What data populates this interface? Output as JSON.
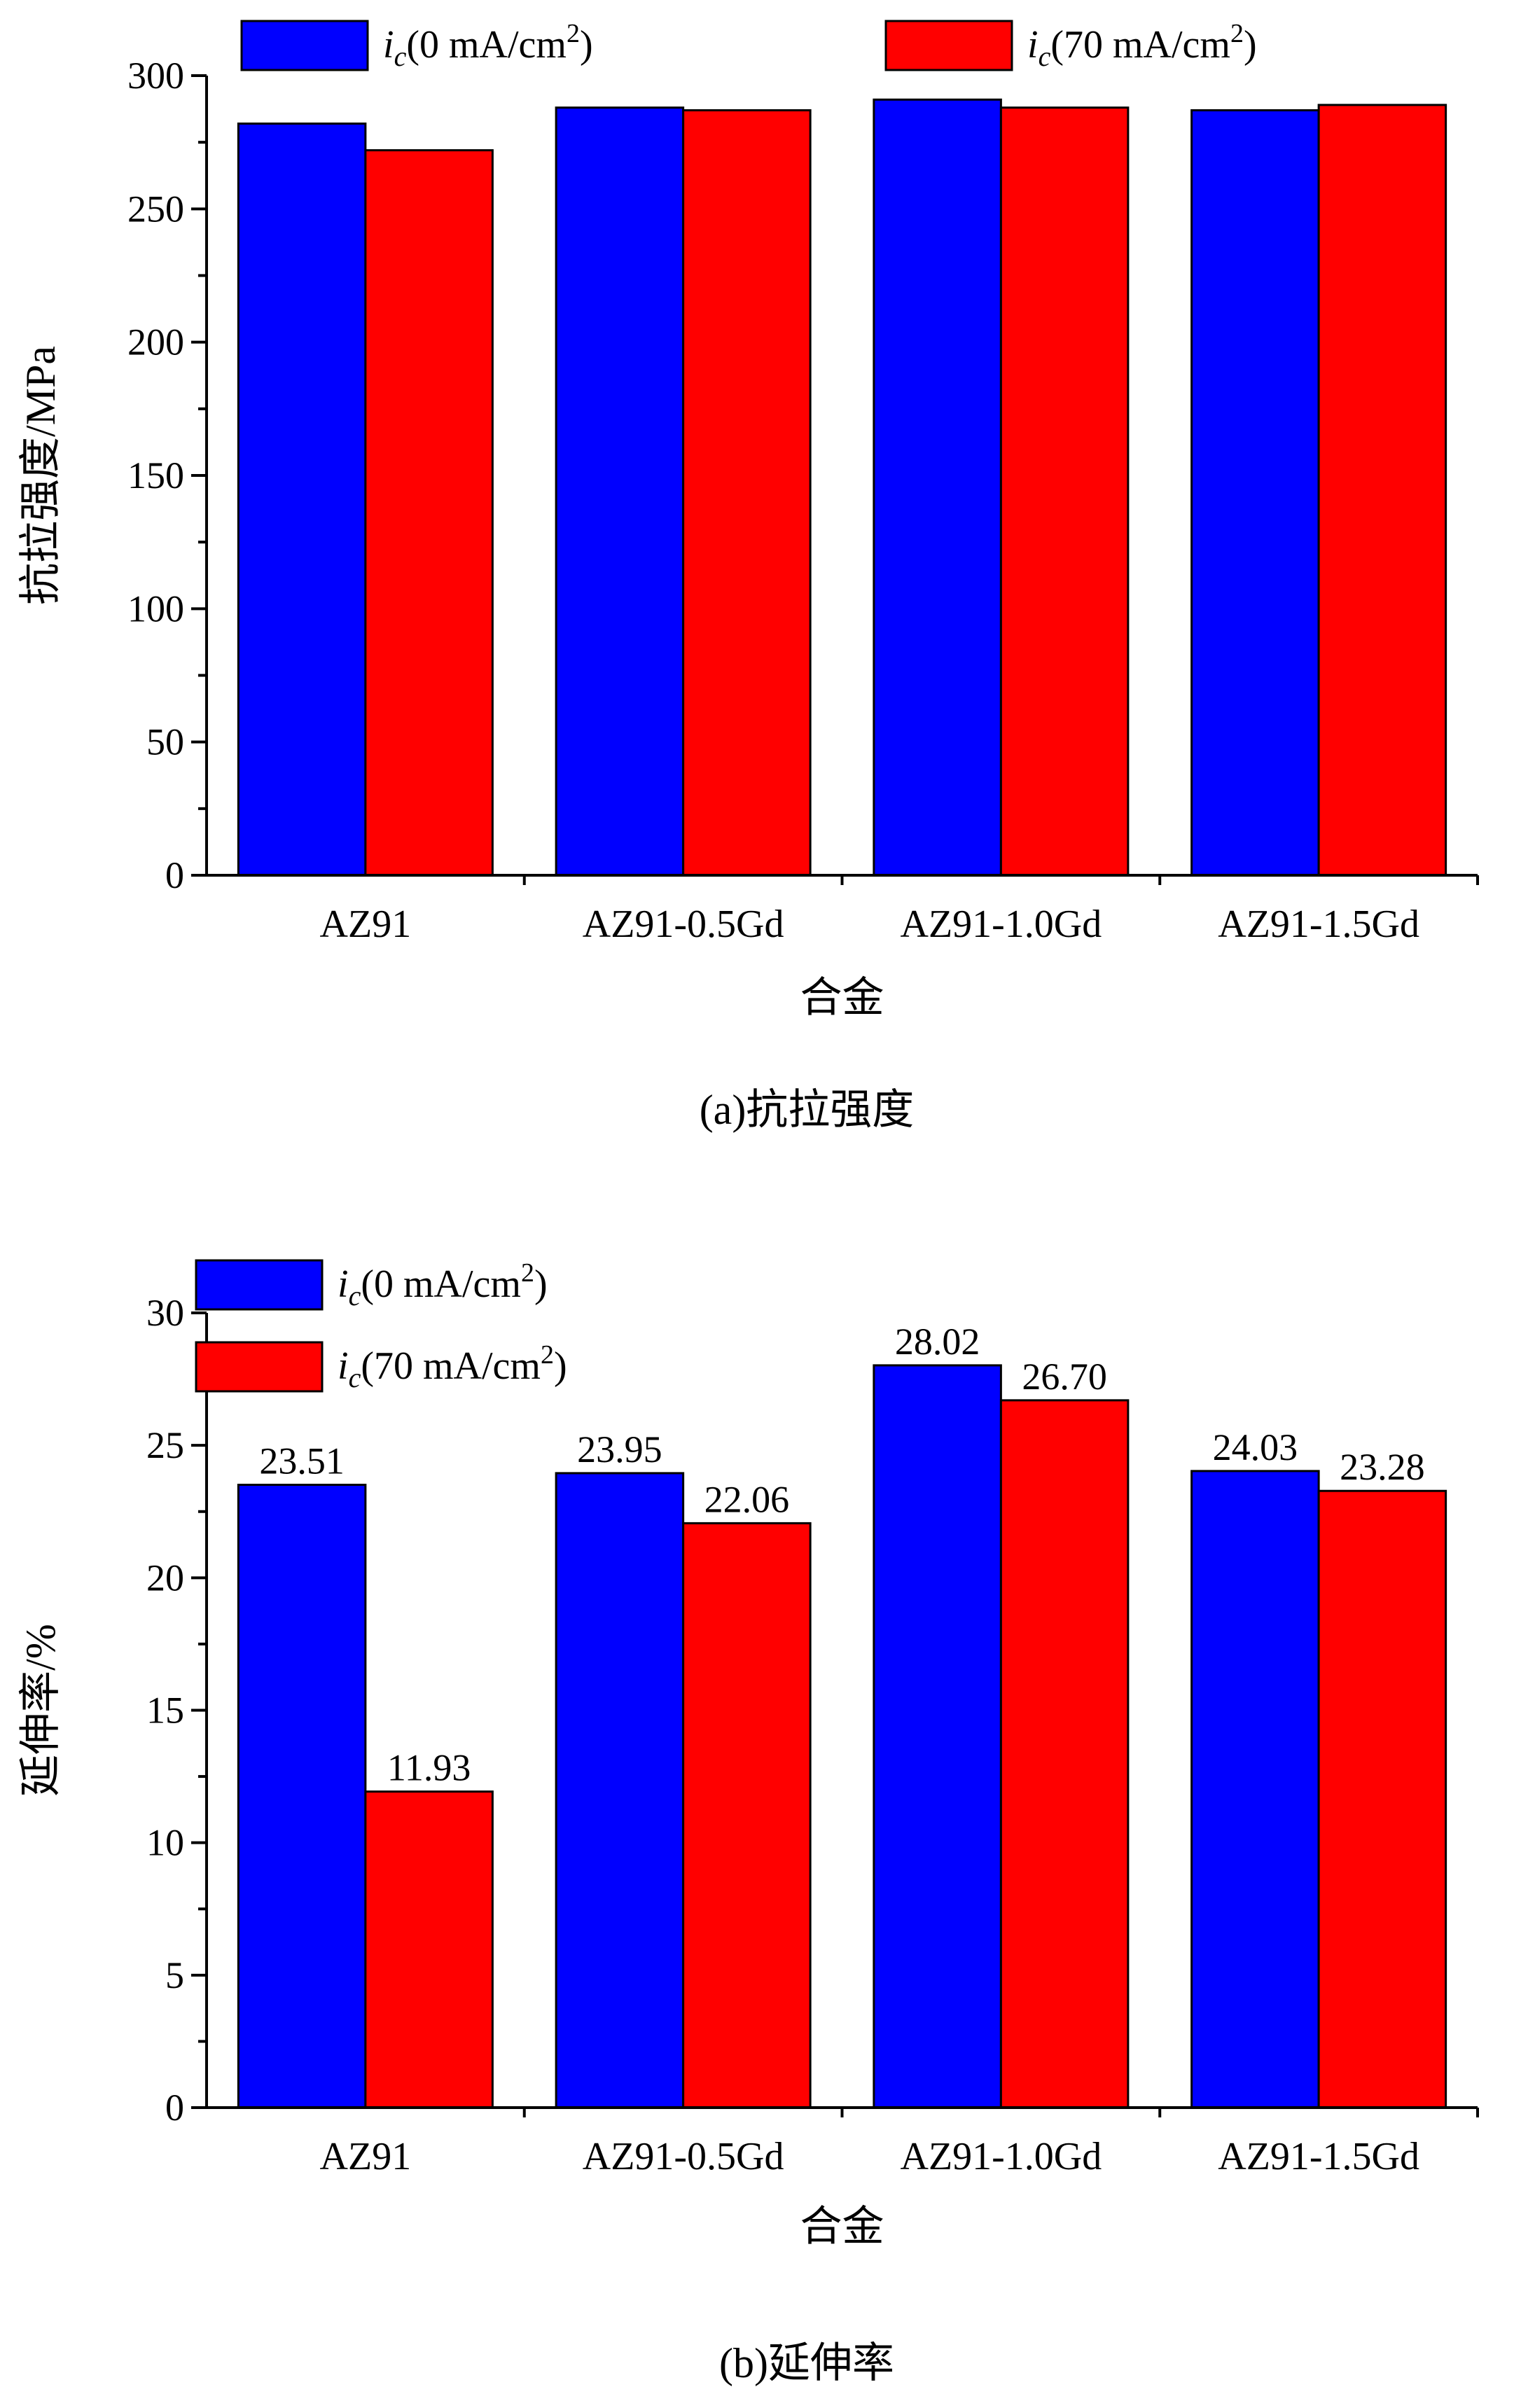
{
  "chart_data": [
    {
      "type": "bar",
      "categories": [
        "AZ91",
        "AZ91-0.5Gd",
        "AZ91-1.0Gd",
        "AZ91-1.5Gd"
      ],
      "series": [
        {
          "name": "ic(0 mA/cm2)",
          "legend": {
            "symbol": "i",
            "subscript": "c",
            "text": "(0 mA/cm",
            "sup": "2",
            "close": ")"
          },
          "color": "#0000ff",
          "values": [
            282,
            288,
            291,
            287
          ]
        },
        {
          "name": "ic(70 mA/cm2)",
          "legend": {
            "symbol": "i",
            "subscript": "c",
            "text": "(70 mA/cm",
            "sup": "2",
            "close": ")"
          },
          "color": "#ff0000",
          "values": [
            272,
            287,
            288,
            289
          ]
        }
      ],
      "ylabel": "抗拉强度/MPa",
      "xlabel": "合金",
      "ylim": [
        0,
        300
      ],
      "yticks": [
        0,
        50,
        100,
        150,
        200,
        250,
        300
      ],
      "ytick_labels": [
        "0",
        "50",
        "100",
        "150",
        "200",
        "250",
        "300"
      ],
      "legend_placement": "top, single row",
      "grid": false,
      "caption": "(a)抗拉强度",
      "data_labels": null
    },
    {
      "type": "bar",
      "categories": [
        "AZ91",
        "AZ91-0.5Gd",
        "AZ91-1.0Gd",
        "AZ91-1.5Gd"
      ],
      "series": [
        {
          "name": "ic(0 mA/cm2)",
          "legend": {
            "symbol": "i",
            "subscript": "c",
            "text": "(0 mA/cm",
            "sup": "2",
            "close": ")"
          },
          "color": "#0000ff",
          "values": [
            23.51,
            23.95,
            28.02,
            24.03
          ]
        },
        {
          "name": "ic(70 mA/cm2)",
          "legend": {
            "symbol": "i",
            "subscript": "c",
            "text": "(70 mA/cm",
            "sup": "2",
            "close": ")"
          },
          "color": "#ff0000",
          "values": [
            11.93,
            22.06,
            26.7,
            23.28
          ]
        }
      ],
      "ylabel": "延伸率/%",
      "xlabel": "合金",
      "ylim": [
        0,
        30
      ],
      "yticks": [
        0,
        5,
        10,
        15,
        20,
        25,
        30
      ],
      "ytick_labels": [
        "0",
        "5",
        "10",
        "15",
        "20",
        "25",
        "30"
      ],
      "legend_placement": "top-left, stacked",
      "grid": false,
      "caption": "(b)延伸率",
      "data_labels": [
        [
          "23.51",
          "23.95",
          "28.02",
          "24.03"
        ],
        [
          "11.93",
          "22.06",
          "26.70",
          "23.28"
        ]
      ]
    }
  ]
}
